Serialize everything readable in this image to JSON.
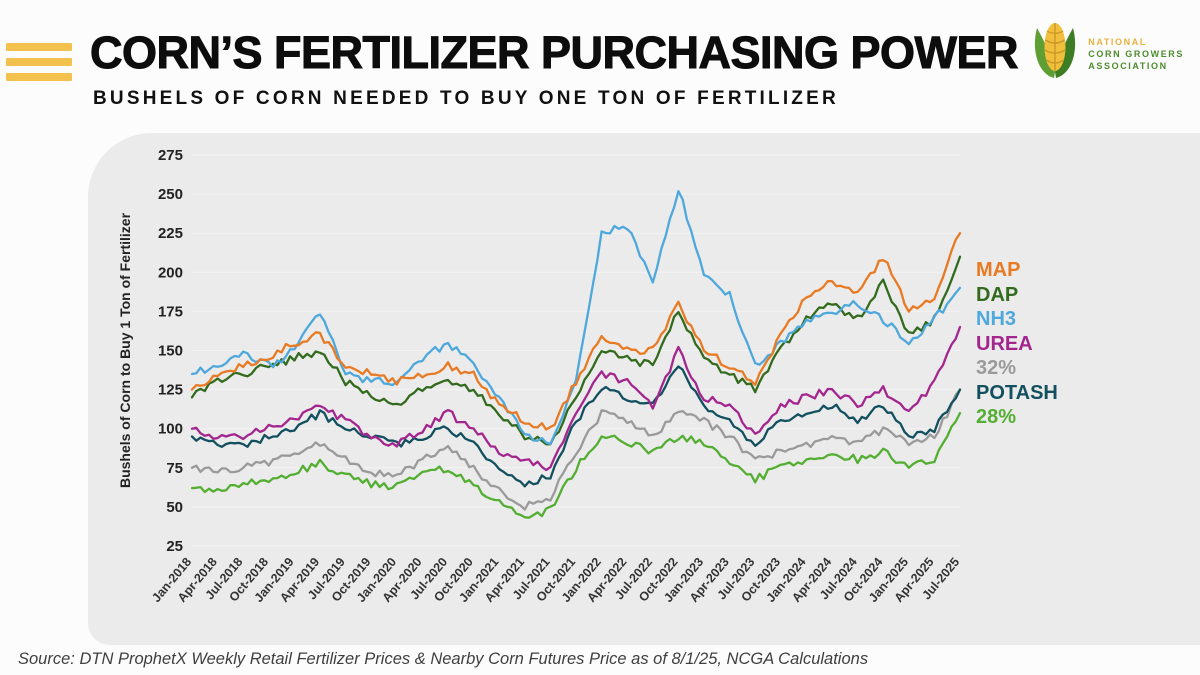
{
  "header": {
    "title": "CORN’S FERTILIZER PURCHASING POWER",
    "subtitle": "BUSHELS OF CORN NEEDED TO BUY ONE TON OF FERTILIZER"
  },
  "logo": {
    "org_lines": [
      "NATIONAL",
      "CORN GROWERS",
      "ASSOCIATION"
    ]
  },
  "footer": {
    "source": "Source: DTN ProphetX Weekly Retail Fertilizer Prices & Nearby Corn Futures Price as of 8/1/25, NCGA Calculations"
  },
  "colors": {
    "accent_gold": "#F2C14E",
    "logo_green": "#4C8C2B",
    "panel_background": "#EBEBEB",
    "title_text": "#0d0d0d"
  },
  "chart_data": {
    "type": "line",
    "title": "",
    "xlabel": "",
    "ylabel": "Bushels of Corn to Buy 1 Ton of Fertilizer",
    "ylim": [
      25,
      275
    ],
    "yticks": [
      25,
      50,
      75,
      100,
      125,
      150,
      175,
      200,
      225,
      250,
      275
    ],
    "grid": false,
    "legend_position": "right",
    "x": [
      "Jan-2018",
      "Apr-2018",
      "Jul-2018",
      "Oct-2018",
      "Jan-2019",
      "Apr-2019",
      "Jul-2019",
      "Oct-2019",
      "Jan-2020",
      "Apr-2020",
      "Jul-2020",
      "Oct-2020",
      "Jan-2021",
      "Apr-2021",
      "Jul-2021",
      "Oct-2021",
      "Jan-2022",
      "Apr-2022",
      "Jul-2022",
      "Oct-2022",
      "Jan-2023",
      "Apr-2023",
      "Jul-2023",
      "Oct-2023",
      "Jan-2024",
      "Apr-2024",
      "Jul-2024",
      "Oct-2024",
      "Jan-2025",
      "Apr-2025",
      "Jul-2025"
    ],
    "series": [
      {
        "name": "MAP",
        "color": "#E87A24",
        "values": [
          125,
          135,
          140,
          145,
          155,
          160,
          140,
          135,
          130,
          135,
          140,
          135,
          115,
          105,
          100,
          130,
          160,
          150,
          150,
          180,
          150,
          140,
          130,
          160,
          185,
          195,
          185,
          210,
          175,
          185,
          225
        ]
      },
      {
        "name": "DAP",
        "color": "#336B1E",
        "values": [
          120,
          130,
          135,
          140,
          145,
          150,
          130,
          120,
          115,
          125,
          130,
          125,
          110,
          95,
          90,
          120,
          150,
          145,
          140,
          175,
          145,
          135,
          125,
          150,
          170,
          180,
          170,
          195,
          160,
          170,
          210
        ]
      },
      {
        "name": "NH3",
        "color": "#4FA8DC",
        "values": [
          135,
          140,
          150,
          140,
          150,
          175,
          135,
          130,
          130,
          145,
          155,
          140,
          120,
          95,
          90,
          130,
          225,
          230,
          195,
          253,
          200,
          185,
          140,
          155,
          170,
          175,
          180,
          170,
          155,
          170,
          190
        ]
      },
      {
        "name": "UREA",
        "color": "#A3268F",
        "values": [
          100,
          95,
          95,
          100,
          105,
          115,
          105,
          95,
          90,
          100,
          110,
          100,
          85,
          80,
          75,
          110,
          135,
          130,
          115,
          150,
          120,
          115,
          95,
          115,
          120,
          125,
          115,
          125,
          110,
          130,
          165
        ]
      },
      {
        "name": "32%",
        "color": "#9A9A9A",
        "values": [
          75,
          72,
          75,
          78,
          85,
          90,
          80,
          72,
          70,
          80,
          90,
          75,
          60,
          50,
          55,
          85,
          110,
          105,
          95,
          110,
          105,
          95,
          80,
          85,
          90,
          95,
          90,
          100,
          90,
          95,
          125
        ]
      },
      {
        "name": "POTASH",
        "color": "#12505F",
        "values": [
          95,
          90,
          90,
          95,
          100,
          110,
          100,
          95,
          90,
          95,
          100,
          90,
          75,
          65,
          70,
          105,
          125,
          120,
          115,
          140,
          115,
          105,
          90,
          105,
          110,
          115,
          105,
          115,
          95,
          100,
          125
        ]
      },
      {
        "name": "28%",
        "color": "#53AE32",
        "values": [
          62,
          60,
          65,
          68,
          72,
          78,
          70,
          65,
          63,
          70,
          75,
          65,
          52,
          42,
          48,
          75,
          95,
          92,
          85,
          95,
          90,
          80,
          68,
          75,
          80,
          85,
          80,
          85,
          75,
          80,
          110
        ]
      }
    ]
  }
}
